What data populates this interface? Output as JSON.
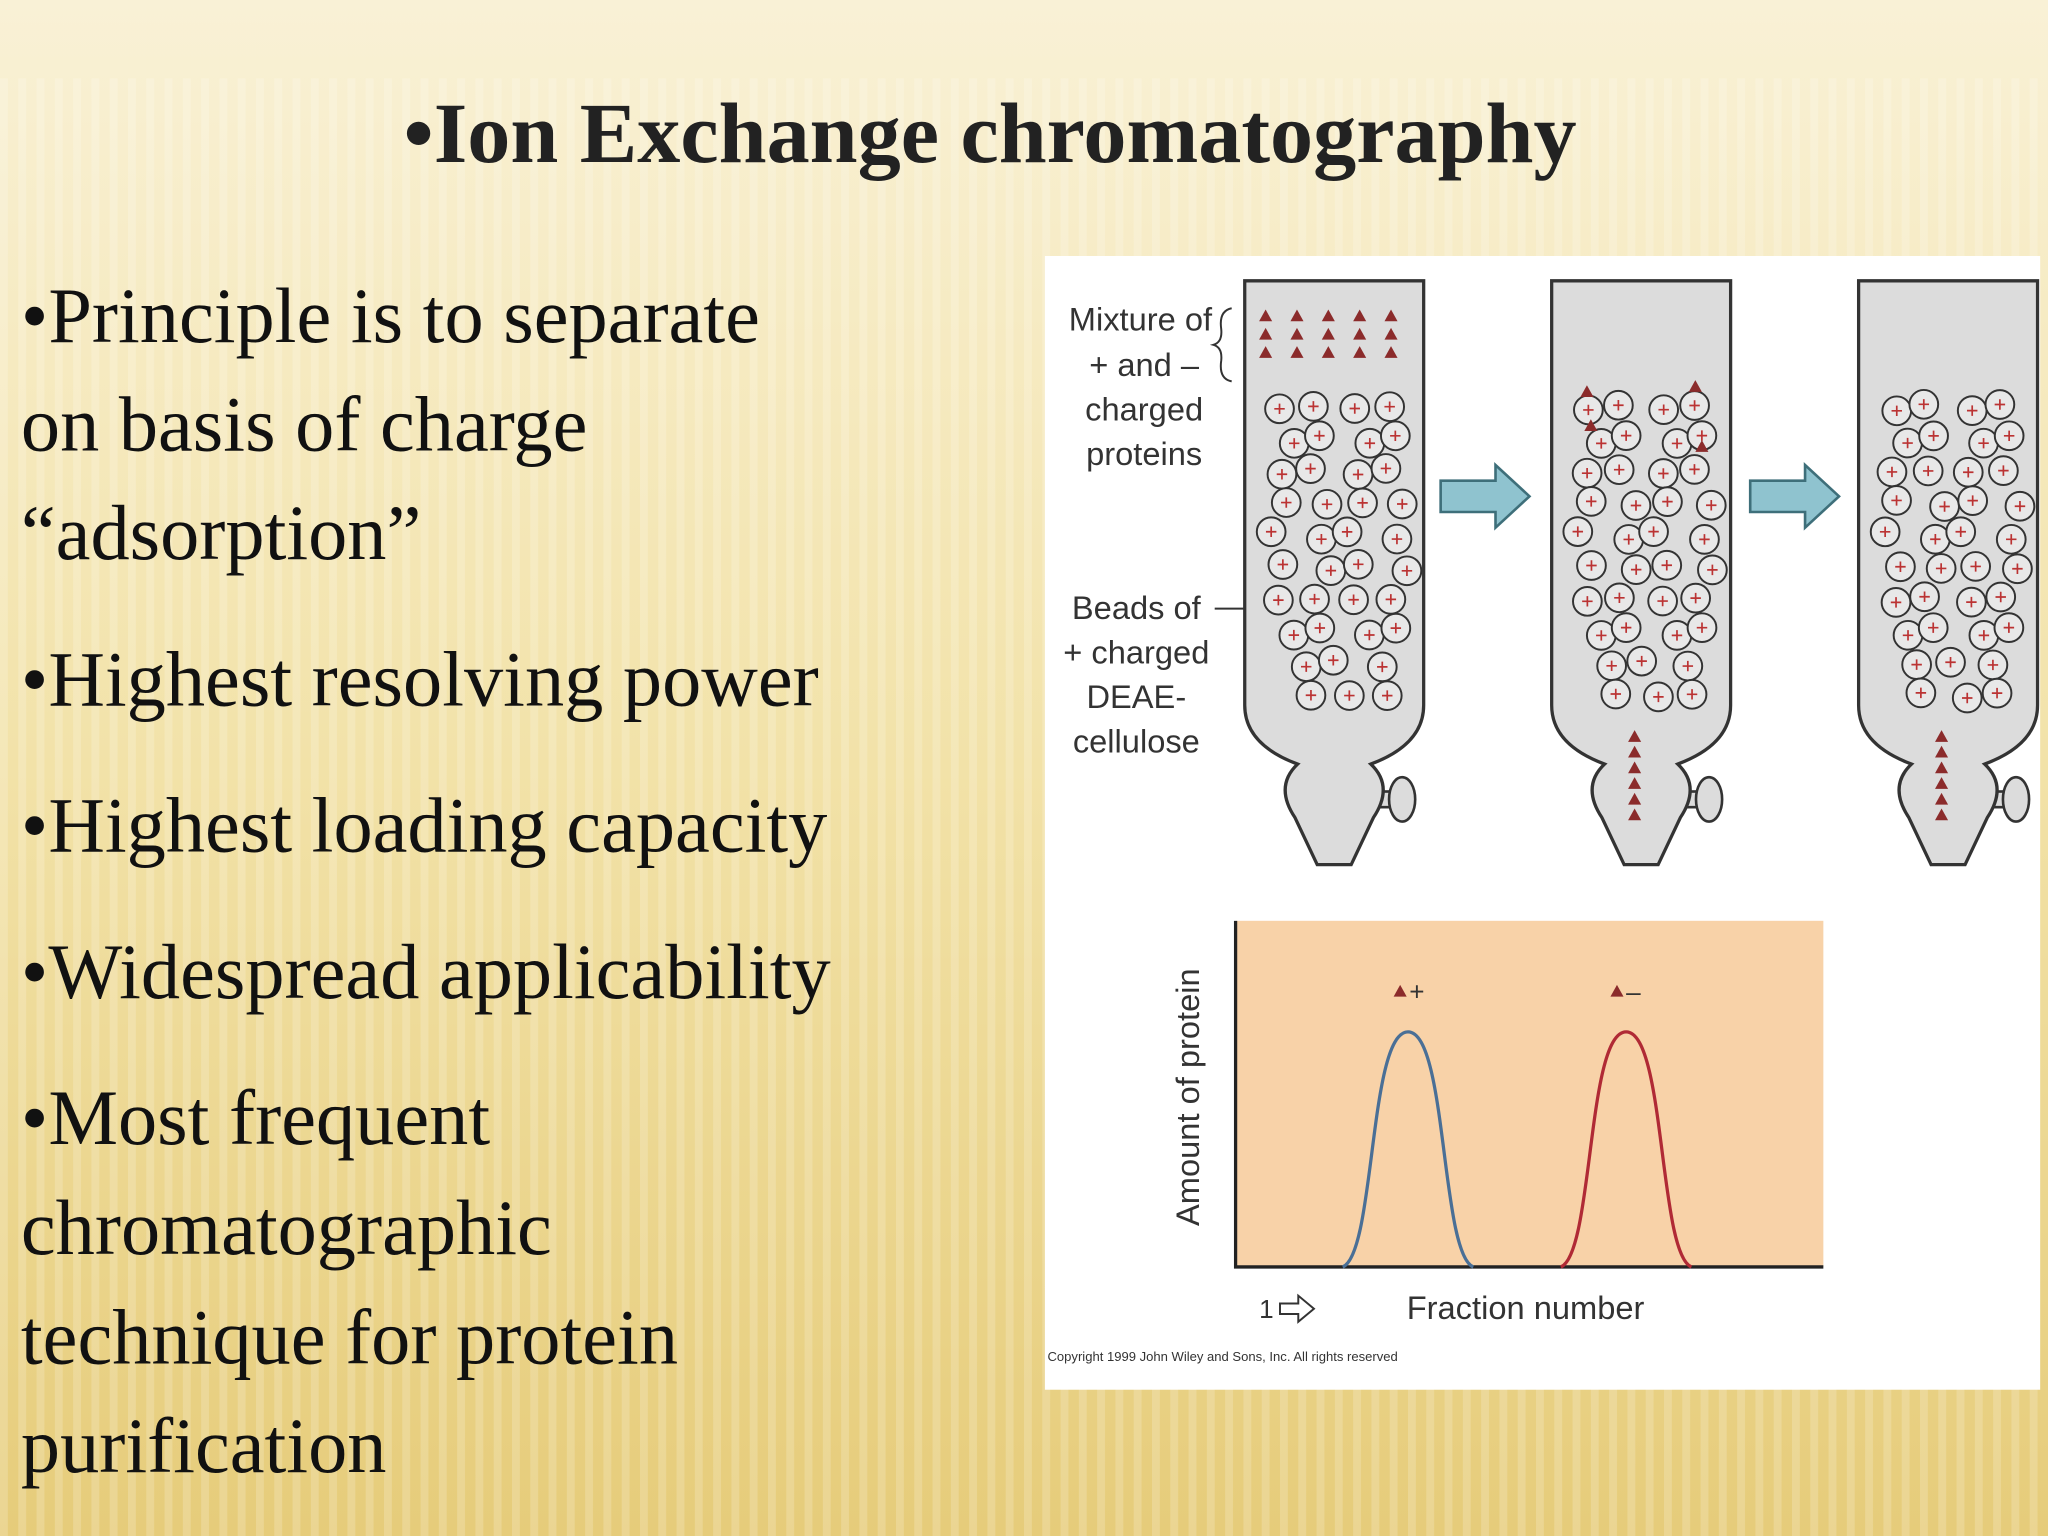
{
  "header": {
    "title": "•Ion Exchange chromatography"
  },
  "bullets": [
    [
      "•Principle is to separate",
      "on basis of charge",
      "“adsorption”"
    ],
    [
      "•Highest resolving power"
    ],
    [
      "•Highest loading capacity"
    ],
    [
      "•Widespread applicability"
    ],
    [
      "•Most frequent",
      "chromatographic",
      "technique for protein",
      "purification"
    ]
  ],
  "figure": {
    "mixture_label": [
      "Mixture of",
      "+ and –",
      "charged",
      "proteins"
    ],
    "beads_label": [
      "Beads of",
      "+ charged",
      "DEAE-",
      "cellulose"
    ],
    "y_axis_label": "Amount of protein",
    "x_axis_label": "Fraction number",
    "x_start": "1",
    "peak_labels": [
      "+",
      "–"
    ],
    "copyright": "Copyright 1999 John Wiley and Sons, Inc. All rights reserved"
  }
}
